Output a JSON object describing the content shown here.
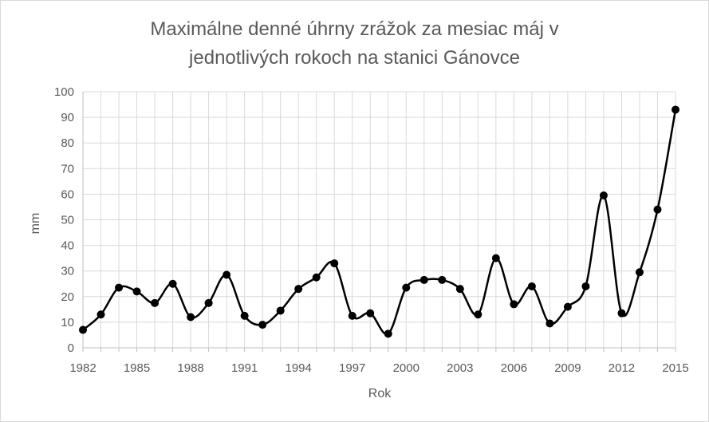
{
  "chart_data": {
    "type": "line",
    "title_lines": [
      "Maximálne denné úhrny zrážok za mesiac máj v",
      "jednotlivých rokoch na stanici Gánovce"
    ],
    "xlabel": "Rok",
    "ylabel": "mm",
    "xlim": [
      1982,
      2015
    ],
    "ylim": [
      0,
      100
    ],
    "x_ticks": [
      1982,
      1985,
      1988,
      1991,
      1994,
      1997,
      2000,
      2003,
      2006,
      2009,
      2012,
      2015
    ],
    "y_ticks": [
      0,
      10,
      20,
      30,
      40,
      50,
      60,
      70,
      80,
      90,
      100
    ],
    "grid": true,
    "legend": "none",
    "line_color": "#000000",
    "marker_color": "#000000",
    "grid_color": "#d9d9d9",
    "series": [
      {
        "x": [
          1982,
          1983,
          1984,
          1985,
          1986,
          1987,
          1988,
          1989,
          1990,
          1991,
          1992,
          1993,
          1994,
          1995,
          1996,
          1997,
          1998,
          1999,
          2000,
          2001,
          2002,
          2003,
          2004,
          2005,
          2006,
          2007,
          2008,
          2009,
          2010,
          2011,
          2012,
          2013,
          2014,
          2015
        ],
        "values": [
          7,
          13,
          23.5,
          22,
          17.5,
          25,
          12,
          17.5,
          28.5,
          12.5,
          9,
          14.5,
          23,
          27.5,
          33,
          12.5,
          13.5,
          5.5,
          23.5,
          26.5,
          26.5,
          23,
          13,
          35,
          17,
          24,
          9.5,
          16,
          24,
          59.5,
          13.5,
          29.5,
          54,
          93
        ]
      }
    ]
  }
}
